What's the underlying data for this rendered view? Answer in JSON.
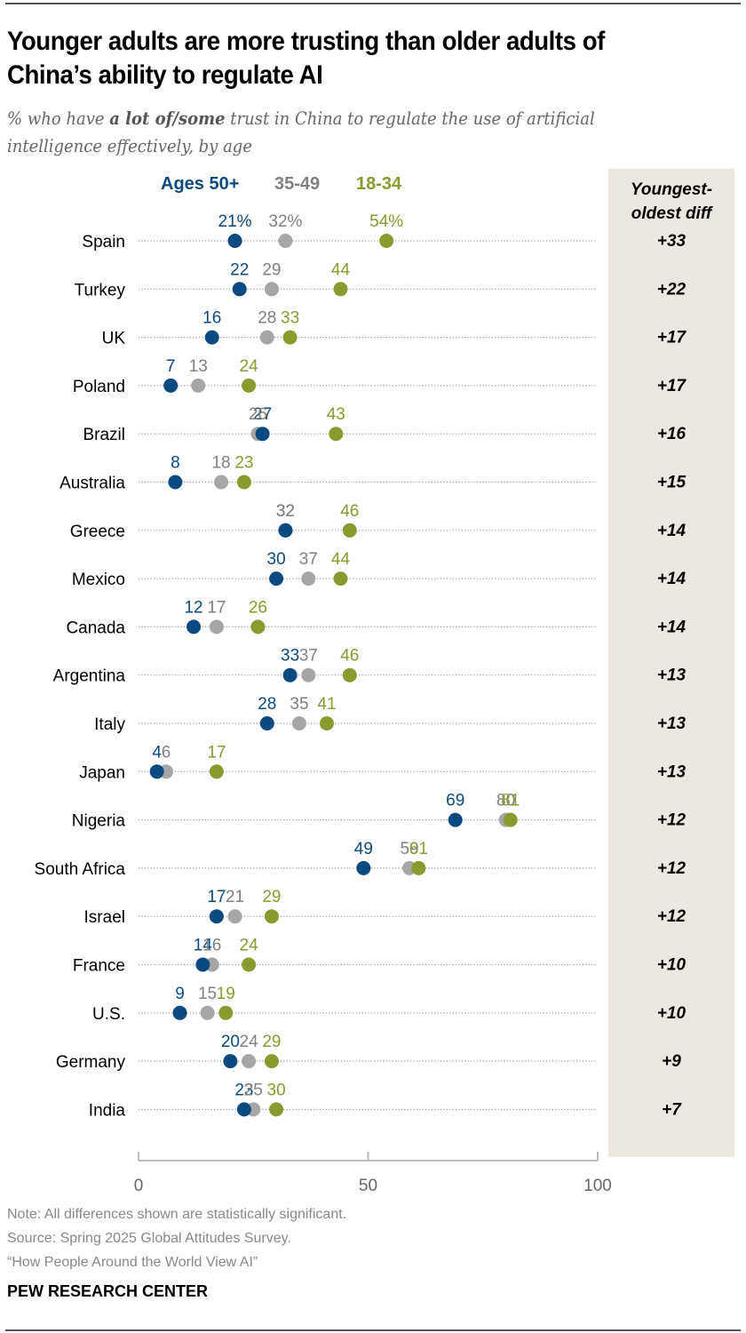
{
  "header": {
    "title": "Younger adults are more trusting than older adults of China’s ability to regulate AI",
    "subtitle_pre": "% who have ",
    "subtitle_bold": "a lot of/some",
    "subtitle_post": " trust in China to regulate the use of artificial intelligence effectively, by age"
  },
  "legend": {
    "items": [
      {
        "label": "Ages 50+",
        "color": "#0b4a80"
      },
      {
        "label": "35-49",
        "color": "#808080"
      },
      {
        "label": "18-34",
        "color": "#8a9a2e"
      }
    ]
  },
  "diff_column": {
    "header_line1": "Youngest-",
    "header_line2": "oldest diff"
  },
  "chart_data": {
    "type": "scatter",
    "subtype": "dot-plot",
    "title": "Younger adults are more trusting than older adults of China’s ability to regulate AI",
    "xlabel": "",
    "ylabel": "",
    "xlim": [
      0,
      100
    ],
    "xticks": [
      0,
      50,
      100
    ],
    "grid": false,
    "legend_position": "top",
    "series_names": [
      "Ages 50+",
      "35-49",
      "18-34"
    ],
    "series_colors": {
      "Ages 50+": "#0b4a80",
      "35-49": "#a6a6a6",
      "18-34": "#8a9a2e"
    },
    "label_colors": {
      "Ages 50+": "#0b4a80",
      "35-49": "#808080",
      "18-34": "#8a9a2e"
    },
    "first_row_percent_suffix": true,
    "categories": [
      "Spain",
      "Turkey",
      "UK",
      "Poland",
      "Brazil",
      "Australia",
      "Greece",
      "Mexico",
      "Canada",
      "Argentina",
      "Italy",
      "Japan",
      "Nigeria",
      "South Africa",
      "Israel",
      "France",
      "U.S.",
      "Germany",
      "India"
    ],
    "series": [
      {
        "name": "Ages 50+",
        "values": [
          21,
          22,
          16,
          7,
          27,
          8,
          32,
          30,
          12,
          33,
          28,
          4,
          69,
          49,
          17,
          14,
          9,
          20,
          23
        ]
      },
      {
        "name": "35-49",
        "values": [
          32,
          29,
          28,
          13,
          26,
          18,
          32,
          37,
          17,
          37,
          35,
          6,
          80,
          59,
          21,
          16,
          15,
          24,
          25
        ]
      },
      {
        "name": "18-34",
        "values": [
          54,
          44,
          33,
          24,
          43,
          23,
          46,
          44,
          26,
          46,
          41,
          17,
          81,
          61,
          29,
          24,
          19,
          29,
          30
        ]
      }
    ],
    "diff": [
      "+33",
      "+22",
      "+17",
      "+17",
      "+16",
      "+15",
      "+14",
      "+14",
      "+14",
      "+13",
      "+13",
      "+13",
      "+12",
      "+12",
      "+12",
      "+10",
      "+10",
      "+9",
      "+7"
    ]
  },
  "footer": {
    "note": "Note: All differences shown are statistically significant.",
    "source": "Source: Spring 2025 Global Attitudes Survey.",
    "report": "“How People Around the World View AI”",
    "brand": "PEW RESEARCH CENTER"
  }
}
